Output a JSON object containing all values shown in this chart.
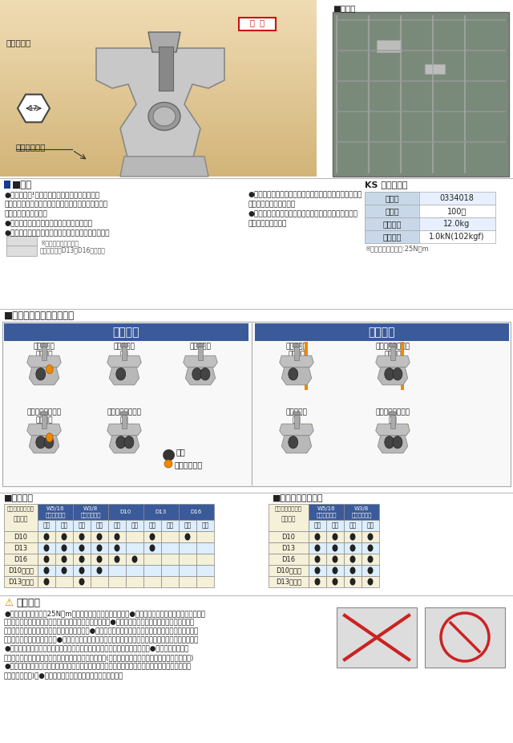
{
  "bg_color": "#ffffff",
  "top_bg": "#f0e0b0",
  "blue_header": "#3a5a9a",
  "light_blue_row": "#e8f0ff",
  "beige_row": "#f5f0e0",
  "product_code": "0334018",
  "quantity": "100個",
  "weight": "12.0kg",
  "load": "1.0kN(102kgf)",
  "torque_note": "※ボルト締付トルク:25N・m",
  "text_color": "#222222",
  "orange_color": "#ee8800",
  "dark_gray": "#555555",
  "table_left_header": "#e0e8c0",
  "table_label_bg": "#e8e8c8",
  "section_sq_color": "#1a3a8a",
  "features_left": [
    "●作業性抜群!鉄筋、セパを挟んで締めるだけ。",
    "　特にスラブでの平行引きは、上からの締付けだけで",
    "　作業が完了します。",
    "●色々な使い方ができるマルチな金物です。",
    "●スラブ鉄筋下段への取り付けで、かぶりもクリア。"
  ],
  "features_right": [
    "●ボルトを締めると鉄筋、セパを固へ押しつける構造で、",
    "　ガッチリ固定します。",
    "●ボルト先端に抜け止め座金を装備。型枠内への部品落",
    "　下を防止します。"
  ],
  "caution_lines": [
    "●ボルトの締め付けは25N・mでしっかり行ってください。　●平行引きで挟み込む場合、必ず鉄筋を",
    "奥に、セパレーターをボルト側に取り付けてください。　●鉄筋と鉄筋を平行で挟み込む場合、必ず小",
    "径の鉄筋をボルト側に取り付けてください。　●締め付け後、緩みや鉄筋とセパレーターの間に隙間が無",
    "いかを確認してください。　●鉄筋とセパレーターを金物の奥へ押し込んだ状態で締め付けてください。",
    "●鉄筋、セパレーターと金物が斜めにならないように締め付けてください。　●ボルトの締めすぎ",
    "に注意してください。ネジが破損する恐れがあります。(特に電動工具使用時には注意してください。)",
    "●金物に先行挿する場合、ボルトの締めに注意しないよう注意してください。締め付けとボルトの頭",
    "が移動します。)　●強度には十分注意して使用してください。"
  ]
}
